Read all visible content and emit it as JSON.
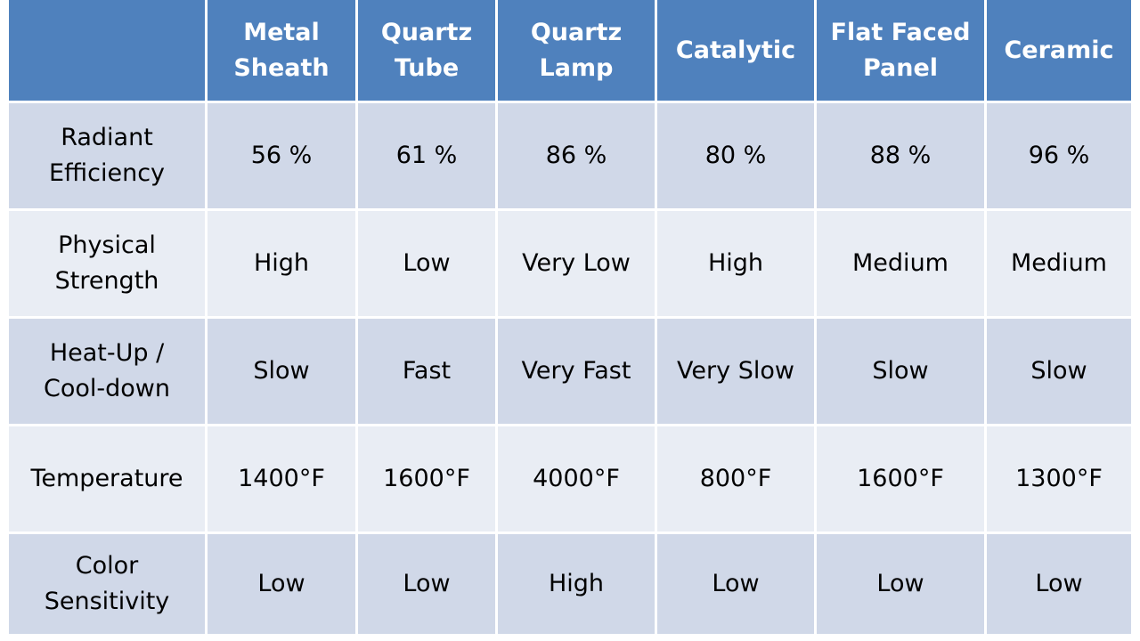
{
  "table": {
    "columns": [
      "Metal\nSheath",
      "Quartz\nTube",
      "Quartz\nLamp",
      "Catalytic",
      "Flat Faced\nPanel",
      "Ceramic"
    ],
    "rows": [
      {
        "label": "Radiant\nEfficiency",
        "values": [
          "56 %",
          "61 %",
          "86 %",
          "80 %",
          "88 %",
          "96 %"
        ]
      },
      {
        "label": "Physical\nStrength",
        "values": [
          "High",
          "Low",
          "Very Low",
          "High",
          "Medium",
          "Medium"
        ]
      },
      {
        "label": "Heat-Up /\nCool-down",
        "values": [
          "Slow",
          "Fast",
          "Very Fast",
          "Very Slow",
          "Slow",
          "Slow"
        ]
      },
      {
        "label": "Temperature",
        "values": [
          "1400°F",
          "1600°F",
          "4000°F",
          "800°F",
          "1600°F",
          "1300°F"
        ]
      },
      {
        "label": "Color\nSensitivity",
        "values": [
          "Low",
          "Low",
          "High",
          "Low",
          "Low",
          "Low"
        ]
      }
    ]
  }
}
